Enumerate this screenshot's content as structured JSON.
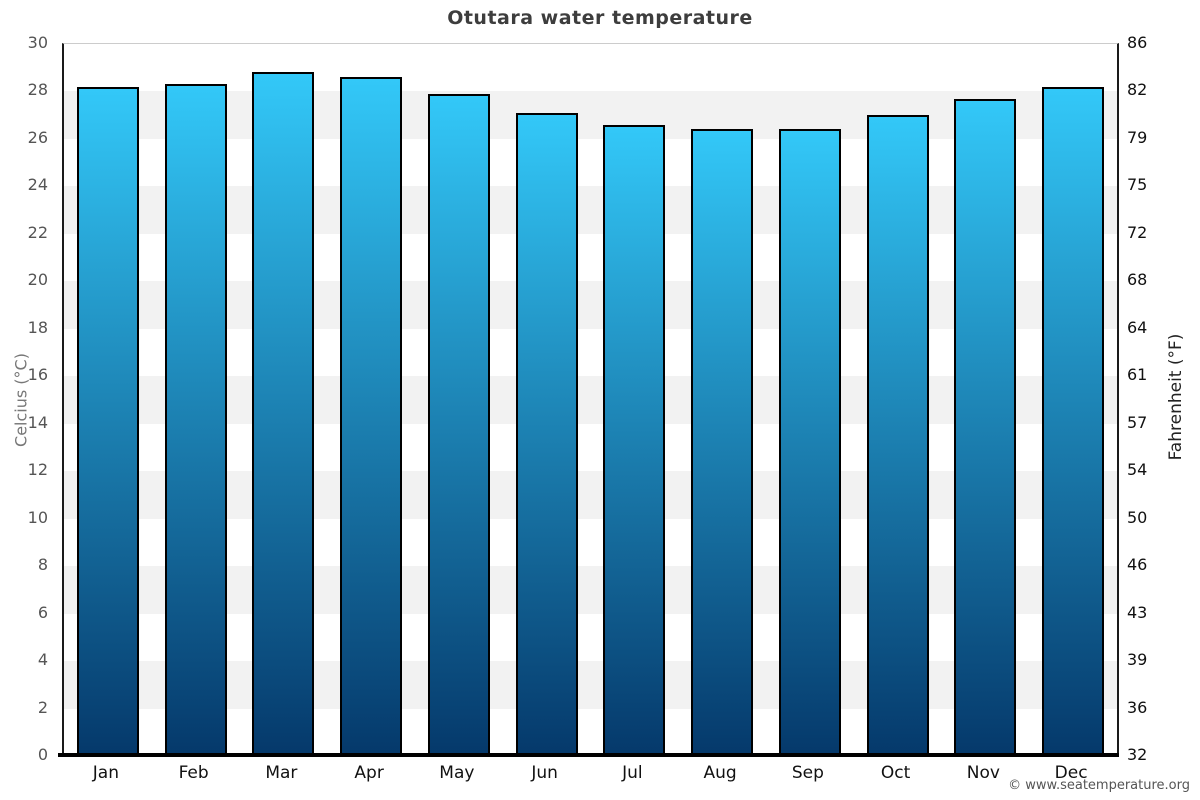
{
  "title": "Otutara water temperature",
  "copyright": "© www.seatemperature.org",
  "axes": {
    "left_label": "Celcius (°C)",
    "right_label": "Fahrenheit (°F)"
  },
  "chart_data": {
    "type": "bar",
    "title": "Otutara water temperature",
    "categories": [
      "Jan",
      "Feb",
      "Mar",
      "Apr",
      "May",
      "Jun",
      "Jul",
      "Aug",
      "Sep",
      "Oct",
      "Nov",
      "Dec"
    ],
    "values": [
      28.2,
      28.3,
      28.8,
      28.6,
      27.9,
      27.1,
      26.6,
      26.4,
      26.4,
      27.0,
      27.7,
      28.2
    ],
    "unit": "°C",
    "xlabel": "",
    "ylabel_left": "Celcius (°C)",
    "ylabel_right": "Fahrenheit (°F)",
    "ylim_celsius": [
      0,
      30
    ],
    "yticks_celsius": [
      30,
      28,
      26,
      24,
      22,
      20,
      18,
      16,
      14,
      12,
      10,
      8,
      6,
      4,
      2,
      0
    ],
    "yticks_fahrenheit": [
      86,
      82,
      79,
      75,
      72,
      68,
      64,
      61,
      57,
      54,
      50,
      46,
      43,
      39,
      36,
      32
    ],
    "grid": "alternating horizontal 2-degree bands, no vertical gridlines",
    "legend": "none",
    "colors": {
      "bar_gradient_top": "#33c8f8",
      "bar_gradient_bottom": "#05396b",
      "bar_border": "#000000",
      "band_shaded": "#f2f2f2",
      "band_plain": "#ffffff",
      "background": "#ffffff"
    }
  }
}
